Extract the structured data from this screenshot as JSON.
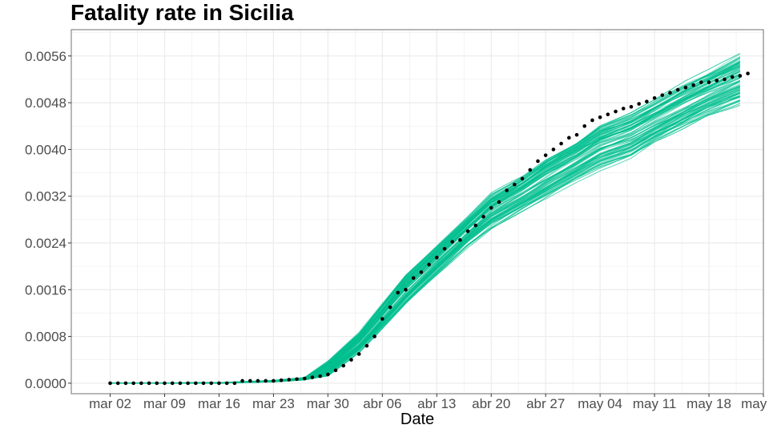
{
  "chart_data": {
    "type": "line",
    "title": "Fatality rate in  Sicilia",
    "xlabel": "Date",
    "ylabel": "",
    "x_axis": {
      "type": "date",
      "range": [
        "2020-02-26",
        "2020-05-25"
      ],
      "ticks": [
        {
          "date": "2020-03-02",
          "label": "mar 02"
        },
        {
          "date": "2020-03-09",
          "label": "mar 09"
        },
        {
          "date": "2020-03-16",
          "label": "mar 16"
        },
        {
          "date": "2020-03-23",
          "label": "mar 23"
        },
        {
          "date": "2020-03-30",
          "label": "mar 30"
        },
        {
          "date": "2020-04-06",
          "label": "abr 06"
        },
        {
          "date": "2020-04-13",
          "label": "abr 13"
        },
        {
          "date": "2020-04-20",
          "label": "abr 20"
        },
        {
          "date": "2020-04-27",
          "label": "abr 27"
        },
        {
          "date": "2020-05-04",
          "label": "may 04"
        },
        {
          "date": "2020-05-11",
          "label": "may 11"
        },
        {
          "date": "2020-05-18",
          "label": "may 18"
        },
        {
          "date": "2020-05-25",
          "label": "may 25"
        }
      ]
    },
    "y_axis": {
      "range": [
        -0.00018,
        0.00605
      ],
      "ticks": [
        {
          "value": 0.0,
          "label": "0.0000"
        },
        {
          "value": 0.0008,
          "label": "0.0008"
        },
        {
          "value": 0.0016,
          "label": "0.0016"
        },
        {
          "value": 0.0024,
          "label": "0.0024"
        },
        {
          "value": 0.0032,
          "label": "0.0032"
        },
        {
          "value": 0.004,
          "label": "0.0040"
        },
        {
          "value": 0.0048,
          "label": "0.0048"
        },
        {
          "value": 0.0056,
          "label": "0.0056"
        }
      ]
    },
    "grid": true,
    "legend": "none",
    "colors": {
      "simulations": "#00bf8f",
      "observed": "#000000",
      "grid": "#ebebeb",
      "panel_border": "#7f7f7f"
    },
    "simulation_band": {
      "description_visible": false,
      "count": 100,
      "x": [
        "2020-03-02",
        "2020-03-16",
        "2020-03-23",
        "2020-03-27",
        "2020-03-30",
        "2020-04-03",
        "2020-04-06",
        "2020-04-09",
        "2020-04-13",
        "2020-04-17",
        "2020-04-20",
        "2020-04-24",
        "2020-04-27",
        "2020-05-01",
        "2020-05-04",
        "2020-05-08",
        "2020-05-11",
        "2020-05-15",
        "2020-05-18",
        "2020-05-22"
      ],
      "lower": [
        0.0,
        0.0,
        2e-05,
        5e-05,
        0.0001,
        0.0005,
        0.0009,
        0.0013,
        0.0018,
        0.0023,
        0.0026,
        0.0029,
        0.0031,
        0.0034,
        0.0036,
        0.0038,
        0.00405,
        0.0043,
        0.0045,
        0.0047
      ],
      "upper": [
        0.0,
        1e-05,
        5e-05,
        0.0001,
        0.0004,
        0.0009,
        0.0014,
        0.0019,
        0.0024,
        0.0029,
        0.0033,
        0.0036,
        0.0039,
        0.0042,
        0.0045,
        0.0047,
        0.0049,
        0.0052,
        0.0054,
        0.0057
      ]
    },
    "series": [
      {
        "role": "observed",
        "x": [
          "2020-03-02",
          "2020-03-03",
          "2020-03-04",
          "2020-03-05",
          "2020-03-06",
          "2020-03-07",
          "2020-03-08",
          "2020-03-09",
          "2020-03-10",
          "2020-03-11",
          "2020-03-12",
          "2020-03-13",
          "2020-03-14",
          "2020-03-15",
          "2020-03-16",
          "2020-03-17",
          "2020-03-18",
          "2020-03-19",
          "2020-03-20",
          "2020-03-21",
          "2020-03-22",
          "2020-03-23",
          "2020-03-24",
          "2020-03-25",
          "2020-03-26",
          "2020-03-27",
          "2020-03-28",
          "2020-03-29",
          "2020-03-30",
          "2020-03-31",
          "2020-04-01",
          "2020-04-02",
          "2020-04-03",
          "2020-04-04",
          "2020-04-05",
          "2020-04-06",
          "2020-04-07",
          "2020-04-08",
          "2020-04-09",
          "2020-04-10",
          "2020-04-11",
          "2020-04-12",
          "2020-04-13",
          "2020-04-14",
          "2020-04-15",
          "2020-04-16",
          "2020-04-17",
          "2020-04-18",
          "2020-04-19",
          "2020-04-20",
          "2020-04-21",
          "2020-04-22",
          "2020-04-23",
          "2020-04-24",
          "2020-04-25",
          "2020-04-26",
          "2020-04-27",
          "2020-04-28",
          "2020-04-29",
          "2020-04-30",
          "2020-05-01",
          "2020-05-02",
          "2020-05-03",
          "2020-05-04",
          "2020-05-05",
          "2020-05-06",
          "2020-05-07",
          "2020-05-08",
          "2020-05-09",
          "2020-05-10",
          "2020-05-11",
          "2020-05-12",
          "2020-05-13",
          "2020-05-14",
          "2020-05-15",
          "2020-05-16",
          "2020-05-17",
          "2020-05-18",
          "2020-05-19",
          "2020-05-20",
          "2020-05-21",
          "2020-05-22",
          "2020-05-23"
        ],
        "y": [
          0.0,
          0.0,
          0.0,
          0.0,
          0.0,
          0.0,
          0.0,
          0.0,
          0.0,
          0.0,
          0.0,
          0.0,
          0.0,
          0.0,
          0.0,
          0.0,
          0.0,
          4e-05,
          4e-05,
          4e-05,
          4e-05,
          4e-05,
          5e-05,
          6e-05,
          7e-05,
          8e-05,
          0.0001,
          0.00012,
          0.00015,
          0.00022,
          0.0003,
          0.0004,
          0.0005,
          0.00064,
          0.0008,
          0.0011,
          0.0013,
          0.00155,
          0.0016,
          0.0018,
          0.0019,
          0.00203,
          0.00215,
          0.0023,
          0.00242,
          0.00245,
          0.0026,
          0.0027,
          0.00285,
          0.003,
          0.0031,
          0.0033,
          0.0034,
          0.0035,
          0.00365,
          0.0038,
          0.0039,
          0.004,
          0.0041,
          0.0042,
          0.00425,
          0.0044,
          0.0045,
          0.00455,
          0.0046,
          0.00465,
          0.0047,
          0.00473,
          0.00478,
          0.00482,
          0.00488,
          0.00493,
          0.00497,
          0.00502,
          0.00506,
          0.0051,
          0.00515,
          0.00515,
          0.00518,
          0.0052,
          0.00524,
          0.00526,
          0.0053
        ]
      }
    ]
  }
}
